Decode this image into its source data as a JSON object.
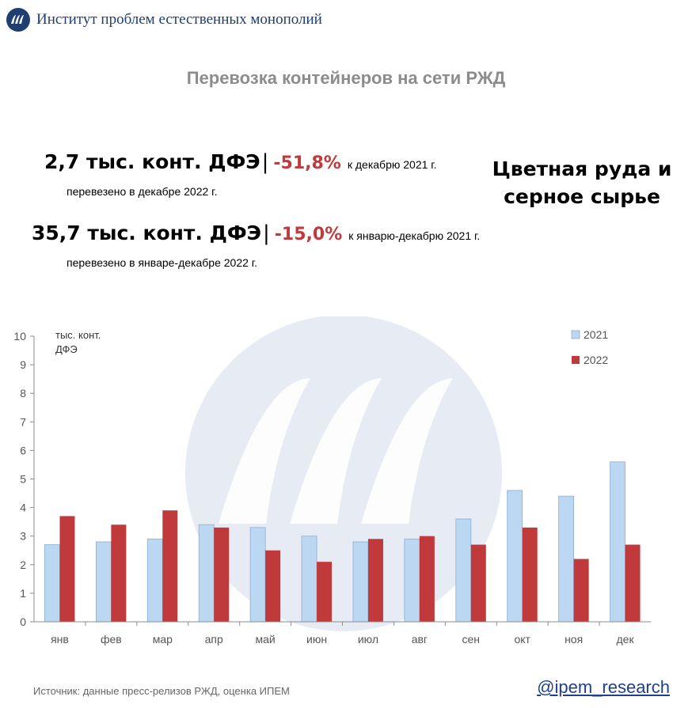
{
  "header": {
    "org_name": "Институт проблем естественных монополий",
    "logo_icon": "ipem-logo-icon"
  },
  "title": "Перевозка контейнеров на сети РЖД",
  "stats": [
    {
      "value": "2,7 тыс. конт. ДФЭ",
      "separator": "|",
      "change": "-51,8%",
      "comparison": "к декабрю 2021 г.",
      "note": "перевезено в декабре 2022 г."
    },
    {
      "value": "35,7 тыс. конт. ДФЭ",
      "separator": "|",
      "change": "-15,0%",
      "comparison": "к январю-декабрю 2021 г.",
      "note": "перевезено в январе-декабре 2022 г."
    }
  ],
  "cargo_type": "Цветная руда и серное сырье",
  "chart_data": {
    "type": "bar",
    "categories": [
      "янв",
      "фев",
      "мар",
      "апр",
      "май",
      "июн",
      "июл",
      "авг",
      "сен",
      "окт",
      "ноя",
      "дек"
    ],
    "series": [
      {
        "name": "2021",
        "color": "#bcd7f1",
        "values": [
          2.7,
          2.8,
          2.9,
          3.4,
          3.3,
          3.0,
          2.8,
          2.9,
          3.6,
          4.6,
          4.4,
          5.6
        ]
      },
      {
        "name": "2022",
        "color": "#c0393b",
        "values": [
          3.7,
          3.4,
          3.9,
          3.3,
          2.5,
          2.1,
          2.9,
          3.0,
          2.7,
          3.3,
          2.2,
          2.7
        ]
      }
    ],
    "ylabel": "тыс. конт. ДФЭ",
    "ylabel_lines": [
      "тыс. конт.",
      "ДФЭ"
    ],
    "ylim": [
      0,
      10
    ],
    "yticks": [
      0,
      1,
      2,
      3,
      4,
      5,
      6,
      7,
      8,
      9,
      10
    ],
    "grid": false,
    "legend": "top-right"
  },
  "footer": {
    "source": "Источник: данные пресс-релизов РЖД, оценка ИПЕМ",
    "handle": "@ipem_research"
  }
}
